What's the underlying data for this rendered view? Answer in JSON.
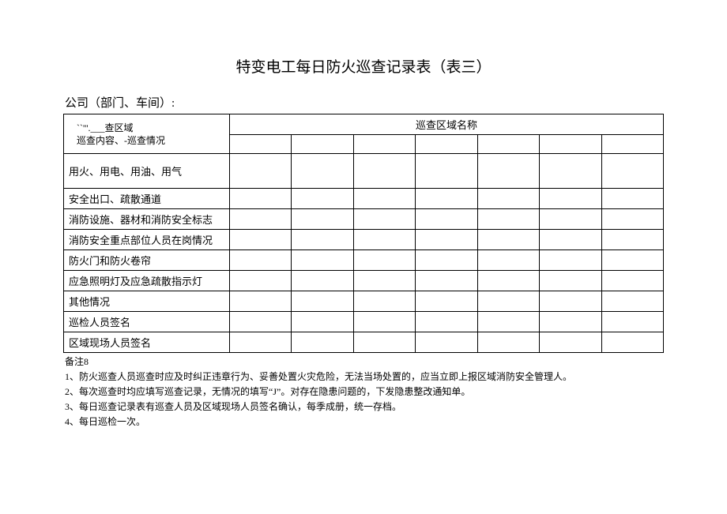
{
  "title": "特变电工每日防火巡查记录表（表三）",
  "company_label": "公司（部门、车间）:",
  "header": {
    "diag_top": "``'''.___查区域",
    "diag_bottom": "巡查内容、-巡查情况",
    "area_name": "巡查区域名称"
  },
  "rows": [
    "用火、用电、用油、用气",
    "安全出口、疏散通道",
    "消防设施、器材和消防安全标志",
    "消防安全重点部位人员在岗情况",
    "防火门和防火卷帘",
    "应急照明灯及应急疏散指示灯",
    "其他情况",
    "巡检人员签名",
    "区域现场人员签名"
  ],
  "notes_header": "备注8",
  "notes": [
    "1、防火巡查人员巡查时应及时纠正违章行为、妥善处置火灾危险，无法当场处置的，应当立即上报区域消防安全管理人。",
    "2、每次巡查时均应填写巡查记录，无情况的填写“J”。对存在隐患问题的，下发隐患整改通知单。",
    "3、每日巡查记录表有巡查人员及区域现场人员签名确认，每季成册，统一存档。",
    "4、每日巡检一次。"
  ],
  "area_columns": 7
}
